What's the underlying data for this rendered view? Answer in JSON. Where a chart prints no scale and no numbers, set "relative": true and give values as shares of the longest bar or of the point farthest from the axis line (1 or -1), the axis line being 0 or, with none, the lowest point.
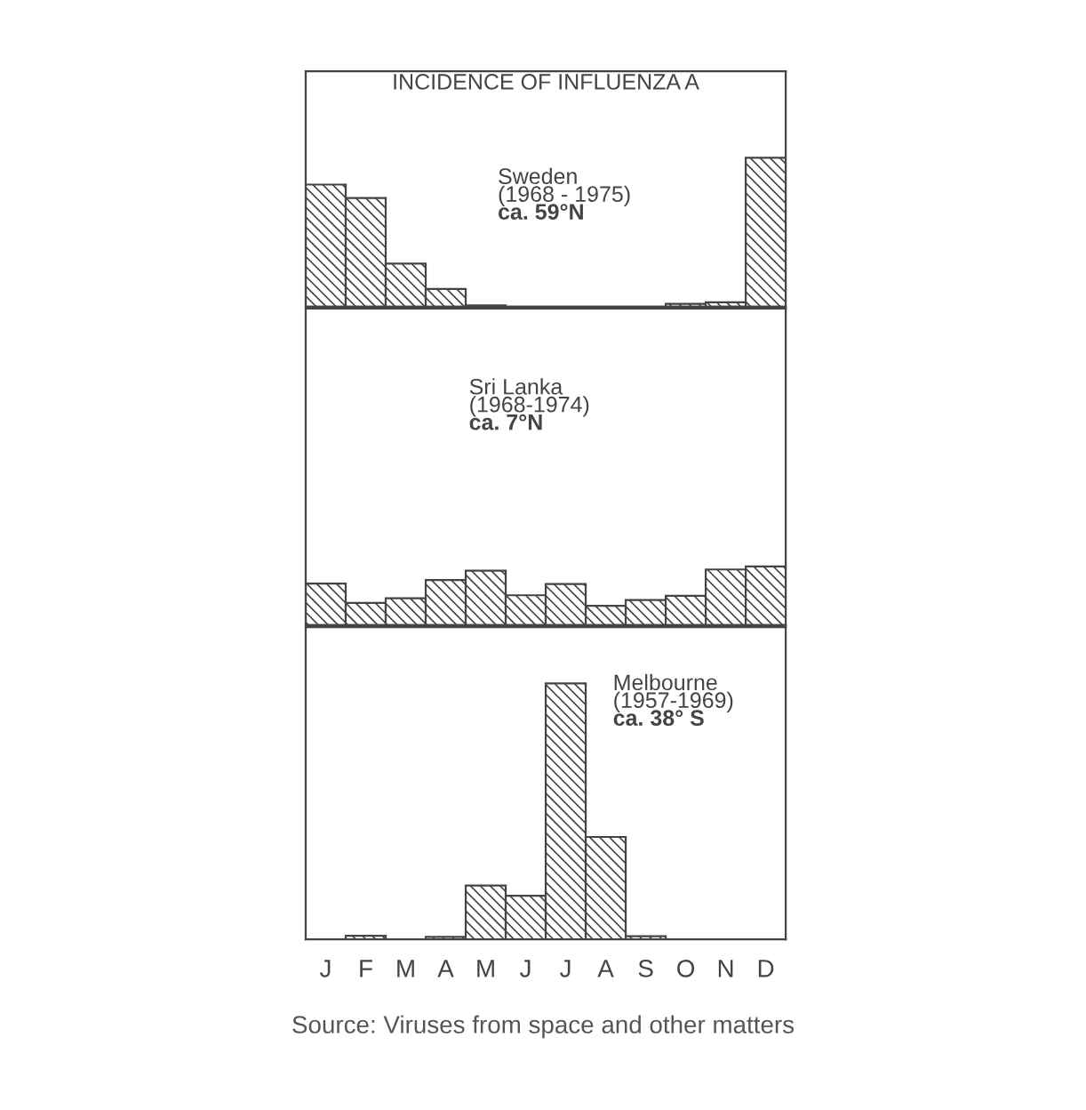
{
  "chart_data": [
    {
      "type": "bar",
      "title": "INCIDENCE OF INFLUENZA A",
      "relative": true,
      "tick_labels": false,
      "grid": false,
      "legend": false,
      "categories": [
        null,
        null,
        null,
        null,
        null,
        null,
        null,
        null,
        null,
        null,
        null,
        null
      ],
      "series": [
        {
          "color": "#444444",
          "values": [
            0.82,
            0.73,
            0.29,
            0.12,
            0.01,
            0,
            0,
            0,
            0,
            0.02,
            0.03,
            1
          ]
        }
      ],
      "annotations": [
        "Sweden",
        "(1968 - 1975)",
        "ca. 59°N"
      ]
    },
    {
      "type": "bar",
      "relative": true,
      "tick_labels": false,
      "grid": false,
      "legend": false,
      "categories": [
        null,
        null,
        null,
        null,
        null,
        null,
        null,
        null,
        null,
        null,
        null,
        null
      ],
      "series": [
        {
          "color": "#444444",
          "values": [
            0.71,
            0.38,
            0.46,
            0.77,
            0.93,
            0.51,
            0.7,
            0.33,
            0.43,
            0.5,
            0.95,
            1
          ]
        }
      ],
      "annotations": [
        "Sri Lanka",
        "(1968-1974)",
        "ca. 7°N"
      ]
    },
    {
      "type": "bar",
      "relative": true,
      "tick_labels": "x",
      "grid": false,
      "legend": false,
      "categories": [
        "J",
        "F",
        "M",
        "A",
        "M",
        "J",
        "J",
        "A",
        "S",
        "O",
        "N",
        "D"
      ],
      "series": [
        {
          "color": "#444444",
          "values": [
            0,
            0.014,
            0,
            0.009,
            0.21,
            0.17,
            1,
            0.4,
            0.012,
            0,
            0,
            0
          ]
        }
      ],
      "annotations": [
        "Melbourne",
        "(1957-1969)",
        "ca. 38° S",
        "Source: Viruses from space and other matters"
      ]
    }
  ]
}
